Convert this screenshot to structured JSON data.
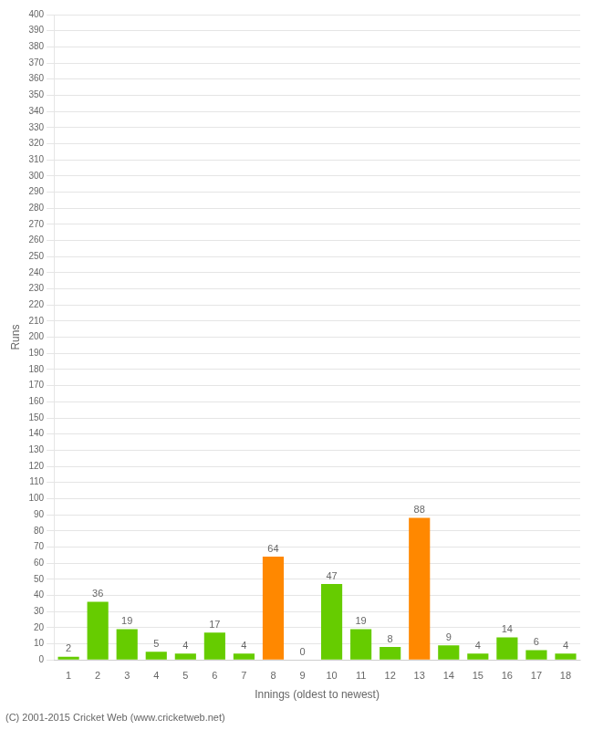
{
  "chart_data": {
    "type": "bar",
    "categories": [
      "1",
      "2",
      "3",
      "4",
      "5",
      "6",
      "7",
      "8",
      "9",
      "10",
      "11",
      "12",
      "13",
      "14",
      "15",
      "16",
      "17",
      "18"
    ],
    "values": [
      2,
      36,
      19,
      5,
      4,
      17,
      4,
      64,
      0,
      47,
      19,
      8,
      88,
      9,
      4,
      14,
      6,
      4
    ],
    "colors": [
      "#66cc00",
      "#66cc00",
      "#66cc00",
      "#66cc00",
      "#66cc00",
      "#66cc00",
      "#66cc00",
      "#ff8800",
      "#66cc00",
      "#66cc00",
      "#66cc00",
      "#66cc00",
      "#ff8800",
      "#66cc00",
      "#66cc00",
      "#66cc00",
      "#66cc00",
      "#66cc00"
    ],
    "xlabel": "Innings (oldest to newest)",
    "ylabel": "Runs",
    "ylim": [
      0,
      400
    ],
    "yticks": [
      0,
      10,
      20,
      30,
      40,
      50,
      60,
      70,
      80,
      90,
      100,
      110,
      120,
      130,
      140,
      150,
      160,
      170,
      180,
      190,
      200,
      210,
      220,
      230,
      240,
      250,
      260,
      270,
      280,
      290,
      300,
      310,
      320,
      330,
      340,
      350,
      360,
      370,
      380,
      390,
      400
    ],
    "grid": true,
    "data_labels": true,
    "annotations": [
      "(C) 2001-2015 Cricket Web (www.cricketweb.net)"
    ]
  }
}
